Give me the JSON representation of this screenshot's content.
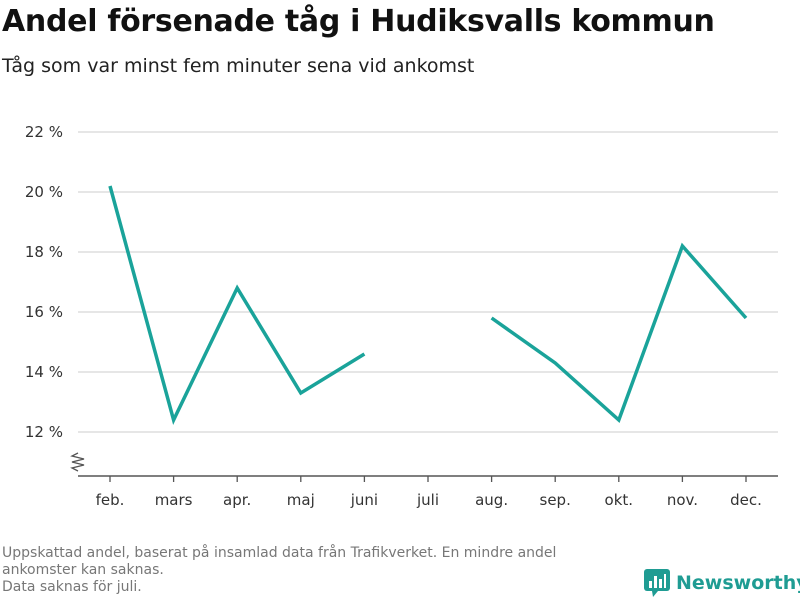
{
  "title": "Andel försenade tåg i Hudiksvalls kommun",
  "subtitle": "Tåg som var minst fem minuter sena vid ankomst",
  "footnote": {
    "line1": "Uppskattad andel, baserat på insamlad data från Trafikverket. En mindre andel",
    "line2": "ankomster kan saknas.",
    "line3": "Data saknas för juli."
  },
  "brand": {
    "name": "Newsworthy",
    "icon": "bar-chart-logo-icon",
    "color": "#1f9c93"
  },
  "colors": {
    "line": "#1aa39a",
    "grid": "#dddddd",
    "axis": "#555555"
  },
  "chart_data": {
    "type": "line",
    "categories": [
      "feb.",
      "mars",
      "apr.",
      "maj",
      "juni",
      "juli",
      "aug.",
      "sep.",
      "okt.",
      "nov.",
      "dec."
    ],
    "series": [
      {
        "values": [
          20.2,
          12.4,
          16.8,
          13.3,
          14.6,
          null,
          15.8,
          14.3,
          12.4,
          18.2,
          15.8
        ]
      }
    ],
    "yticks": [
      12,
      14,
      16,
      18,
      20,
      22
    ],
    "ytick_labels": [
      "12 %",
      "14 %",
      "16 %",
      "18 %",
      "20 %",
      "22 %"
    ],
    "ylim": [
      10.5,
      22
    ],
    "grid": true,
    "axis_break": true,
    "xlabel": "",
    "ylabel": ""
  }
}
